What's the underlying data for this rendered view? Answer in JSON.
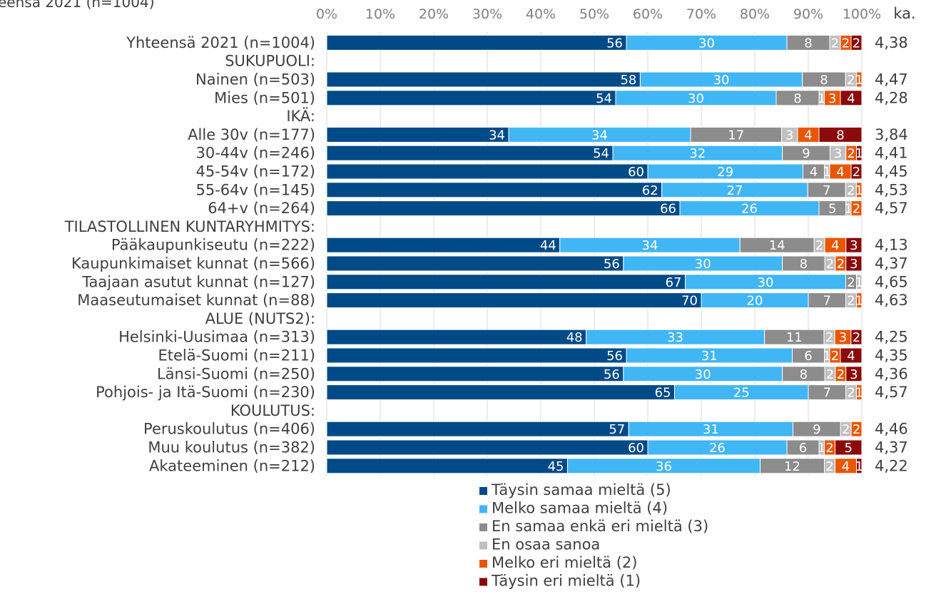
{
  "chart_data": {
    "type": "bar",
    "orientation": "horizontal",
    "stacked": true,
    "title": "eensä 2021 (n=1004)",
    "xlim": [
      0,
      100
    ],
    "x_ticks": [
      "0%",
      "10%",
      "20%",
      "30%",
      "40%",
      "50%",
      "60%",
      "70%",
      "80%",
      "90%",
      "100%"
    ],
    "avg_header": "ka.",
    "grid": true,
    "legend_position": "bottom",
    "legend": [
      {
        "name": "Täysin samaa mieltä (5)",
        "color": "#004b87"
      },
      {
        "name": "Melko samaa mieltä (4)",
        "color": "#41b6f5"
      },
      {
        "name": "En samaa enkä eri mieltä (3)",
        "color": "#8c8c8c"
      },
      {
        "name": "En osaa sanoa",
        "color": "#c0c0c0"
      },
      {
        "name": "Melko eri mieltä (2)",
        "color": "#e95600"
      },
      {
        "name": "Täysin eri mieltä (1)",
        "color": "#8b0a0a"
      }
    ],
    "rows": [
      {
        "label": "Yhteensä 2021 (n=1004)",
        "values": [
          56,
          30,
          8,
          2,
          2,
          2
        ],
        "labels": [
          "56",
          "30",
          "8",
          "2",
          "2",
          "2"
        ],
        "avg": "4,38"
      },
      {
        "label": "SUKUPUOLI:",
        "header": true
      },
      {
        "label": "Nainen (n=503)",
        "values": [
          58,
          30,
          8,
          2,
          1,
          0
        ],
        "labels": [
          "58",
          "30",
          "8",
          "2",
          "1",
          ""
        ],
        "avg": "4,47"
      },
      {
        "label": "Mies (n=501)",
        "values": [
          54,
          30,
          8,
          1,
          3,
          4
        ],
        "labels": [
          "54",
          "30",
          "8",
          "1",
          "3",
          "4"
        ],
        "avg": "4,28"
      },
      {
        "label": "IKÄ:",
        "header": true
      },
      {
        "label": "Alle 30v (n=177)",
        "values": [
          34,
          34,
          17,
          3,
          4,
          8
        ],
        "labels": [
          "34",
          "34",
          "17",
          "3",
          "4",
          "8"
        ],
        "avg": "3,84"
      },
      {
        "label": "30-44v (n=246)",
        "values": [
          54,
          32,
          9,
          3,
          2,
          1
        ],
        "labels": [
          "54",
          "32",
          "9",
          "3",
          "2",
          "1"
        ],
        "avg": "4,41"
      },
      {
        "label": "45-54v (n=172)",
        "values": [
          60,
          29,
          4,
          1,
          4,
          2
        ],
        "labels": [
          "60",
          "29",
          "4",
          "1",
          "4",
          "2"
        ],
        "avg": "4,45"
      },
      {
        "label": "55-64v (n=145)",
        "values": [
          62,
          27,
          7,
          2,
          1,
          0
        ],
        "labels": [
          "62",
          "27",
          "7",
          "2",
          "1",
          ""
        ],
        "avg": "4,53"
      },
      {
        "label": "64+v (n=264)",
        "values": [
          66,
          26,
          5,
          1,
          2,
          0
        ],
        "labels": [
          "66",
          "26",
          "5",
          "1",
          "2",
          ""
        ],
        "avg": "4,57"
      },
      {
        "label": "TILASTOLLINEN KUNTARYHMITYS:",
        "header": true
      },
      {
        "label": "Pääkaupunkiseutu (n=222)",
        "values": [
          44,
          34,
          14,
          2,
          4,
          3
        ],
        "labels": [
          "44",
          "34",
          "14",
          "2",
          "4",
          "3"
        ],
        "avg": "4,13"
      },
      {
        "label": "Kaupunkimaiset kunnat (n=566)",
        "values": [
          56,
          30,
          8,
          2,
          2,
          3
        ],
        "labels": [
          "56",
          "30",
          "8",
          "2",
          "2",
          "3"
        ],
        "avg": "4,37"
      },
      {
        "label": "Taajaan asutut kunnat (n=127)",
        "values": [
          67,
          30,
          2,
          1,
          0,
          0
        ],
        "labels": [
          "67",
          "30",
          "2",
          "1",
          "",
          ""
        ],
        "avg": "4,65"
      },
      {
        "label": "Maaseutumaiset kunnat (n=88)",
        "values": [
          70,
          20,
          7,
          2,
          1,
          0
        ],
        "labels": [
          "70",
          "20",
          "7",
          "2",
          "1",
          ""
        ],
        "avg": "4,63"
      },
      {
        "label": "ALUE (NUTS2):",
        "header": true
      },
      {
        "label": "Helsinki-Uusimaa (n=313)",
        "values": [
          48,
          33,
          11,
          2,
          3,
          2
        ],
        "labels": [
          "48",
          "33",
          "11",
          "2",
          "3",
          "2"
        ],
        "avg": "4,25"
      },
      {
        "label": "Etelä-Suomi (n=211)",
        "values": [
          56,
          31,
          6,
          1,
          2,
          4
        ],
        "labels": [
          "56",
          "31",
          "6",
          "1",
          "2",
          "4"
        ],
        "avg": "4,35"
      },
      {
        "label": "Länsi-Suomi (n=250)",
        "values": [
          56,
          30,
          8,
          2,
          2,
          3
        ],
        "labels": [
          "56",
          "30",
          "8",
          "2",
          "2",
          "3"
        ],
        "avg": "4,36"
      },
      {
        "label": "Pohjois- ja Itä-Suomi (n=230)",
        "values": [
          65,
          25,
          7,
          2,
          1,
          0
        ],
        "labels": [
          "65",
          "25",
          "7",
          "2",
          "1",
          ""
        ],
        "avg": "4,57"
      },
      {
        "label": "KOULUTUS:",
        "header": true
      },
      {
        "label": "Peruskoulutus (n=406)",
        "values": [
          57,
          31,
          9,
          2,
          2,
          0
        ],
        "labels": [
          "57",
          "31",
          "9",
          "2",
          "2",
          ""
        ],
        "avg": "4,46"
      },
      {
        "label": "Muu koulutus (n=382)",
        "values": [
          60,
          26,
          6,
          1,
          2,
          5
        ],
        "labels": [
          "60",
          "26",
          "6",
          "1",
          "2",
          "5"
        ],
        "avg": "4,37"
      },
      {
        "label": "Akateeminen (n=212)",
        "values": [
          45,
          36,
          12,
          2,
          4,
          1
        ],
        "labels": [
          "45",
          "36",
          "12",
          "2",
          "4",
          "1"
        ],
        "avg": "4,22"
      }
    ]
  }
}
